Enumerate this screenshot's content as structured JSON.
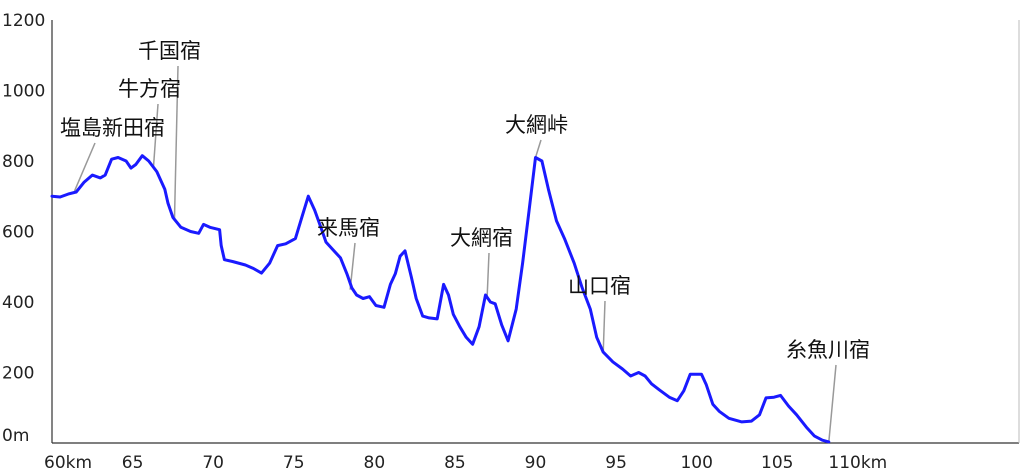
{
  "chart_data": {
    "type": "line",
    "title": "",
    "xlabel": "",
    "ylabel": "",
    "xlim": [
      60,
      120
    ],
    "ylim": [
      0,
      1200
    ],
    "grid": false,
    "x_ticks": [
      {
        "value": 60,
        "label": "60km"
      },
      {
        "value": 65,
        "label": "65"
      },
      {
        "value": 70,
        "label": "70"
      },
      {
        "value": 75,
        "label": "75"
      },
      {
        "value": 80,
        "label": "80"
      },
      {
        "value": 85,
        "label": "85"
      },
      {
        "value": 90,
        "label": "90"
      },
      {
        "value": 95,
        "label": "95"
      },
      {
        "value": 100,
        "label": "100"
      },
      {
        "value": 105,
        "label": "105"
      },
      {
        "value": 110,
        "label": "110km"
      }
    ],
    "y_ticks": [
      {
        "value": 0,
        "label": "0m"
      },
      {
        "value": 200,
        "label": "200"
      },
      {
        "value": 400,
        "label": "400"
      },
      {
        "value": 600,
        "label": "600"
      },
      {
        "value": 800,
        "label": "800"
      },
      {
        "value": 1000,
        "label": "1000"
      },
      {
        "value": 1200,
        "label": "1200"
      }
    ],
    "series": [
      {
        "name": "",
        "color": "#1a1aff",
        "points": [
          [
            60.0,
            700
          ],
          [
            60.5,
            698
          ],
          [
            61.0,
            706
          ],
          [
            61.5,
            712
          ],
          [
            62.0,
            740
          ],
          [
            62.5,
            760
          ],
          [
            63.0,
            752
          ],
          [
            63.3,
            760
          ],
          [
            63.7,
            805
          ],
          [
            64.1,
            810
          ],
          [
            64.6,
            800
          ],
          [
            64.9,
            780
          ],
          [
            65.2,
            790
          ],
          [
            65.6,
            815
          ],
          [
            66.0,
            800
          ],
          [
            66.5,
            770
          ],
          [
            67.0,
            720
          ],
          [
            67.2,
            680
          ],
          [
            67.5,
            640
          ],
          [
            68.0,
            612
          ],
          [
            68.6,
            600
          ],
          [
            69.1,
            595
          ],
          [
            69.4,
            620
          ],
          [
            69.8,
            612
          ],
          [
            70.4,
            605
          ],
          [
            70.5,
            560
          ],
          [
            70.7,
            520
          ],
          [
            71.2,
            515
          ],
          [
            72.0,
            505
          ],
          [
            72.5,
            495
          ],
          [
            73.0,
            482
          ],
          [
            73.5,
            510
          ],
          [
            74.0,
            560
          ],
          [
            74.5,
            565
          ],
          [
            75.1,
            580
          ],
          [
            75.5,
            640
          ],
          [
            75.9,
            700
          ],
          [
            76.3,
            660
          ],
          [
            76.7,
            610
          ],
          [
            77.0,
            570
          ],
          [
            77.5,
            545
          ],
          [
            77.9,
            525
          ],
          [
            78.3,
            480
          ],
          [
            78.6,
            440
          ],
          [
            78.9,
            420
          ],
          [
            79.3,
            410
          ],
          [
            79.7,
            415
          ],
          [
            80.1,
            390
          ],
          [
            80.6,
            385
          ],
          [
            81.0,
            450
          ],
          [
            81.3,
            480
          ],
          [
            81.6,
            530
          ],
          [
            81.9,
            545
          ],
          [
            82.3,
            470
          ],
          [
            82.6,
            410
          ],
          [
            83.0,
            360
          ],
          [
            83.4,
            355
          ],
          [
            83.9,
            352
          ],
          [
            84.3,
            450
          ],
          [
            84.6,
            420
          ],
          [
            84.9,
            365
          ],
          [
            85.3,
            330
          ],
          [
            85.7,
            300
          ],
          [
            86.1,
            280
          ],
          [
            86.5,
            330
          ],
          [
            86.9,
            420
          ],
          [
            87.2,
            400
          ],
          [
            87.5,
            395
          ],
          [
            87.9,
            335
          ],
          [
            88.3,
            290
          ],
          [
            88.8,
            380
          ],
          [
            89.2,
            510
          ],
          [
            89.6,
            660
          ],
          [
            90.0,
            810
          ],
          [
            90.4,
            800
          ],
          [
            90.8,
            720
          ],
          [
            91.3,
            630
          ],
          [
            91.8,
            580
          ],
          [
            92.4,
            510
          ],
          [
            92.9,
            440
          ],
          [
            93.4,
            380
          ],
          [
            93.8,
            300
          ],
          [
            94.2,
            258
          ],
          [
            94.8,
            230
          ],
          [
            95.4,
            210
          ],
          [
            95.9,
            190
          ],
          [
            96.4,
            200
          ],
          [
            96.8,
            190
          ],
          [
            97.2,
            168
          ],
          [
            97.7,
            150
          ],
          [
            98.3,
            130
          ],
          [
            98.8,
            120
          ],
          [
            99.2,
            148
          ],
          [
            99.6,
            195
          ],
          [
            100.3,
            195
          ],
          [
            100.6,
            165
          ],
          [
            101.0,
            110
          ],
          [
            101.4,
            90
          ],
          [
            102.0,
            70
          ],
          [
            102.8,
            60
          ],
          [
            103.4,
            62
          ],
          [
            103.9,
            80
          ],
          [
            104.3,
            128
          ],
          [
            104.8,
            130
          ],
          [
            105.2,
            135
          ],
          [
            105.7,
            105
          ],
          [
            106.2,
            80
          ],
          [
            106.8,
            45
          ],
          [
            107.3,
            20
          ],
          [
            107.8,
            8
          ],
          [
            108.2,
            3
          ]
        ]
      }
    ],
    "annotations": [
      {
        "text": "塩島新田宿",
        "x": 61.4,
        "y": 715
      },
      {
        "text": "牛方宿",
        "x": 66.3,
        "y": 785
      },
      {
        "text": "千国宿",
        "x": 67.6,
        "y": 635
      },
      {
        "text": "来馬宿",
        "x": 78.5,
        "y": 435
      },
      {
        "text": "大網宿",
        "x": 87.0,
        "y": 415
      },
      {
        "text": "大網峠",
        "x": 90.0,
        "y": 810
      },
      {
        "text": "山口宿",
        "x": 94.2,
        "y": 255
      },
      {
        "text": "糸魚川宿",
        "x": 108.2,
        "y": 3
      }
    ]
  }
}
